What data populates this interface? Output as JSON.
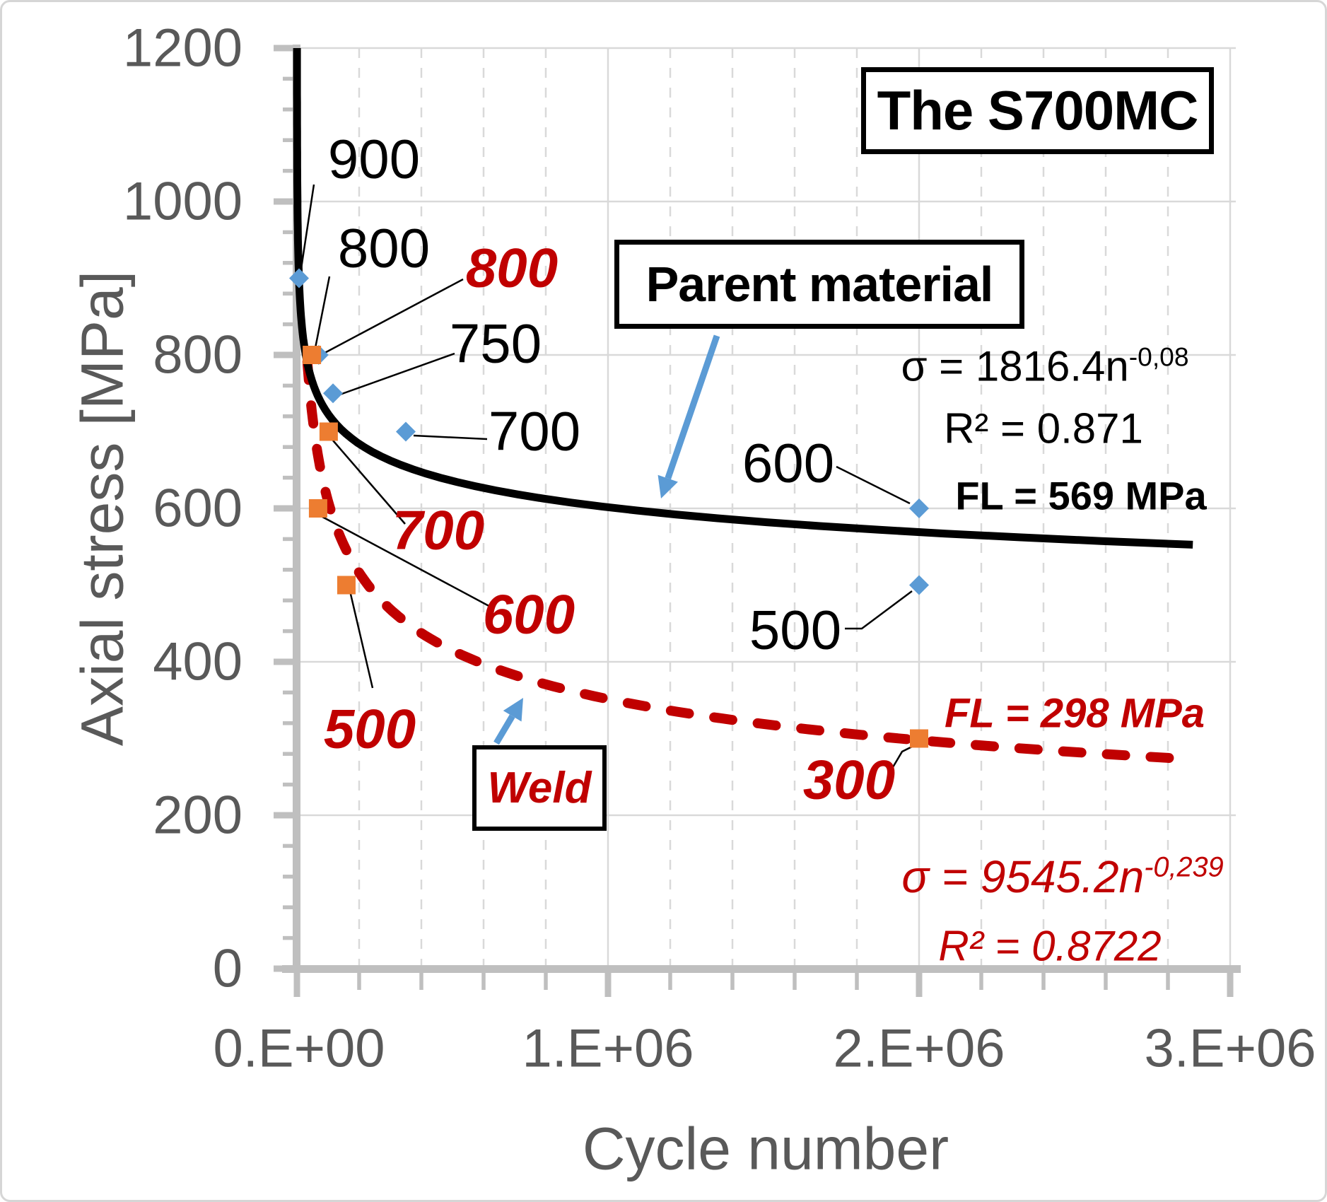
{
  "title_box": {
    "text": "The S700MC"
  },
  "axes": {
    "x": {
      "title": "Cycle number",
      "tick_labels": [
        "0.E+00",
        "1.E+06",
        "2.E+06",
        "3.E+06"
      ]
    },
    "y": {
      "title": "Axial stress [MPa]",
      "tick_labels": [
        "1200",
        "1000",
        "800",
        "600",
        "400",
        "200",
        "0"
      ]
    }
  },
  "callouts": {
    "parent": "Parent material",
    "weld": "Weld"
  },
  "equations": {
    "parent": {
      "sigma_base": "σ = 1816.4n",
      "sigma_exp": "-0,08",
      "r2": "R² = 0.871",
      "fl": "FL = 569 MPa"
    },
    "weld": {
      "fl": "FL = 298 MPa",
      "sigma_base": "σ = 9545.2n",
      "sigma_exp": "-0,239",
      "r2": "R² = 0.8722"
    }
  },
  "point_labels": {
    "parent_900": "900",
    "parent_800": "800",
    "parent_750": "750",
    "parent_700": "700",
    "parent_600": "600",
    "parent_500": "500",
    "weld_800": "800",
    "weld_700": "700",
    "weld_600": "600",
    "weld_500": "500",
    "weld_300": "300"
  },
  "colors": {
    "parent_curve": "#000000",
    "weld_curve": "#C00000",
    "parent_marker": "#5B9BD5",
    "weld_marker": "#ED7D31",
    "arrow": "#5B9BD5",
    "axis": "#BFBFBF",
    "grid": "#D9D9D9",
    "tick_text": "#595959"
  },
  "chart_data": {
    "type": "line",
    "title": "The S700MC",
    "xlabel": "Cycle number",
    "ylabel": "Axial stress [MPa]",
    "xlim": [
      0,
      3000000
    ],
    "ylim": [
      0,
      1200
    ],
    "x_tick_values": [
      0,
      1000000,
      2000000,
      3000000
    ],
    "x_minor_step": 200000,
    "y_tick_values": [
      0,
      200,
      400,
      600,
      800,
      1000,
      1200
    ],
    "y_minor_step": 40,
    "grid": "major-solid, x-minor-dashed",
    "legend_position": "none",
    "series": [
      {
        "name": "Parent material",
        "style": "solid",
        "color": "#000000",
        "marker": "diamond",
        "marker_color": "#5B9BD5",
        "fit_formula": "sigma = 1816.4 * n^-0,08",
        "r_squared": 0.871,
        "fatigue_limit_mpa": 569,
        "fit": {
          "coefficient": 1816.4,
          "exponent": -0.08,
          "n_start": 178,
          "n_end": 2880000
        },
        "points": [
          {
            "n": 6800,
            "stress_mpa": 900
          },
          {
            "n": 70000,
            "stress_mpa": 800
          },
          {
            "n": 116000,
            "stress_mpa": 750
          },
          {
            "n": 350000,
            "stress_mpa": 700
          },
          {
            "n": 2000000,
            "stress_mpa": 600
          },
          {
            "n": 2000000,
            "stress_mpa": 500
          }
        ]
      },
      {
        "name": "Weld",
        "style": "dashed",
        "color": "#C00000",
        "marker": "square",
        "marker_color": "#ED7D31",
        "fit_formula": "sigma = 9545.2 * n^-0,239",
        "r_squared": 0.8722,
        "fatigue_limit_mpa": 298,
        "fit": {
          "coefficient": 9545.2,
          "exponent": -0.239,
          "n_start": 33500,
          "n_end": 2820000
        },
        "points": [
          {
            "n": 48000,
            "stress_mpa": 800
          },
          {
            "n": 102000,
            "stress_mpa": 700
          },
          {
            "n": 68000,
            "stress_mpa": 600
          },
          {
            "n": 159000,
            "stress_mpa": 500
          },
          {
            "n": 2000000,
            "stress_mpa": 300
          }
        ]
      }
    ]
  }
}
